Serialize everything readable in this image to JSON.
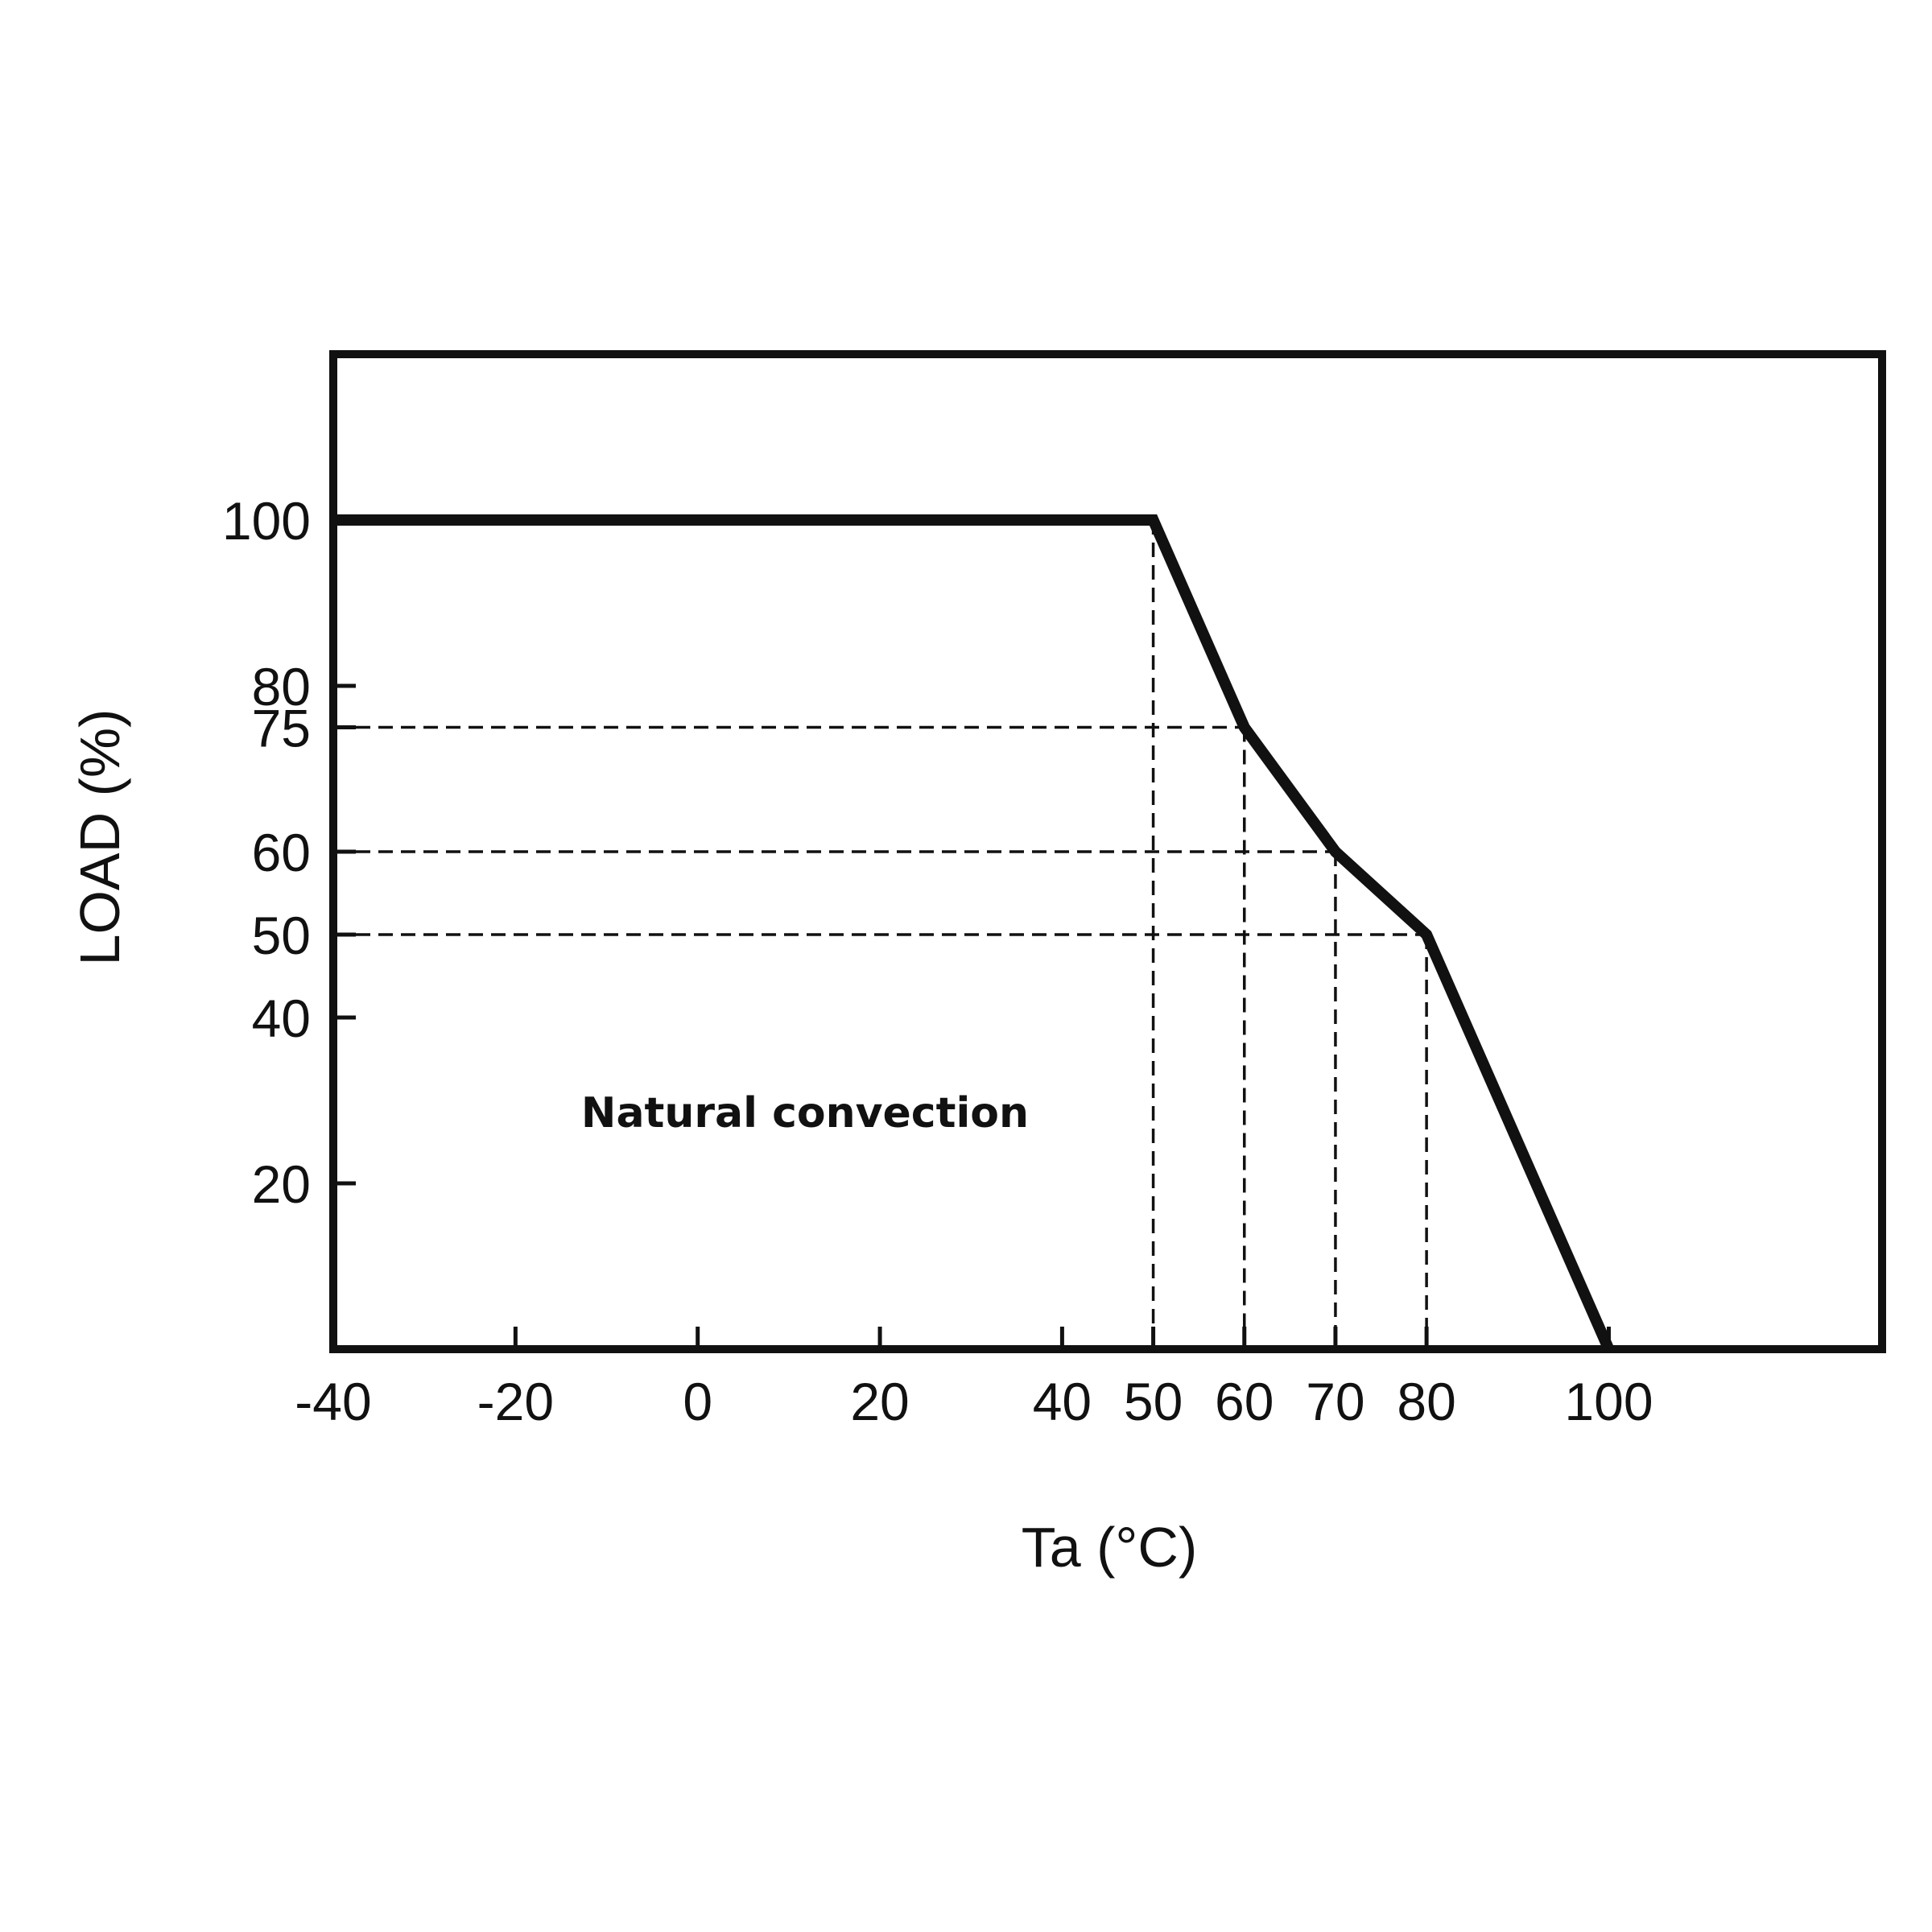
{
  "chart_data": {
    "type": "line",
    "xlabel": "Ta (°C)",
    "ylabel": "LOAD (%)",
    "xlim": [
      -40,
      130
    ],
    "ylim": [
      0,
      120
    ],
    "x_ticks": [
      -40,
      -20,
      0,
      20,
      40,
      50,
      60,
      70,
      80,
      100
    ],
    "y_ticks": [
      20,
      40,
      50,
      60,
      75,
      80,
      100
    ],
    "series": [
      {
        "x": [
          -40,
          50,
          60,
          70,
          80,
          100
        ],
        "y": [
          100,
          100,
          75,
          60,
          50,
          0
        ]
      }
    ],
    "reference_points": [
      {
        "x": 60,
        "y": 75
      },
      {
        "x": 70,
        "y": 60
      },
      {
        "x": 80,
        "y": 50
      },
      {
        "x": 50,
        "y": 100
      }
    ],
    "annotation": "Natural convection",
    "grid": false
  }
}
